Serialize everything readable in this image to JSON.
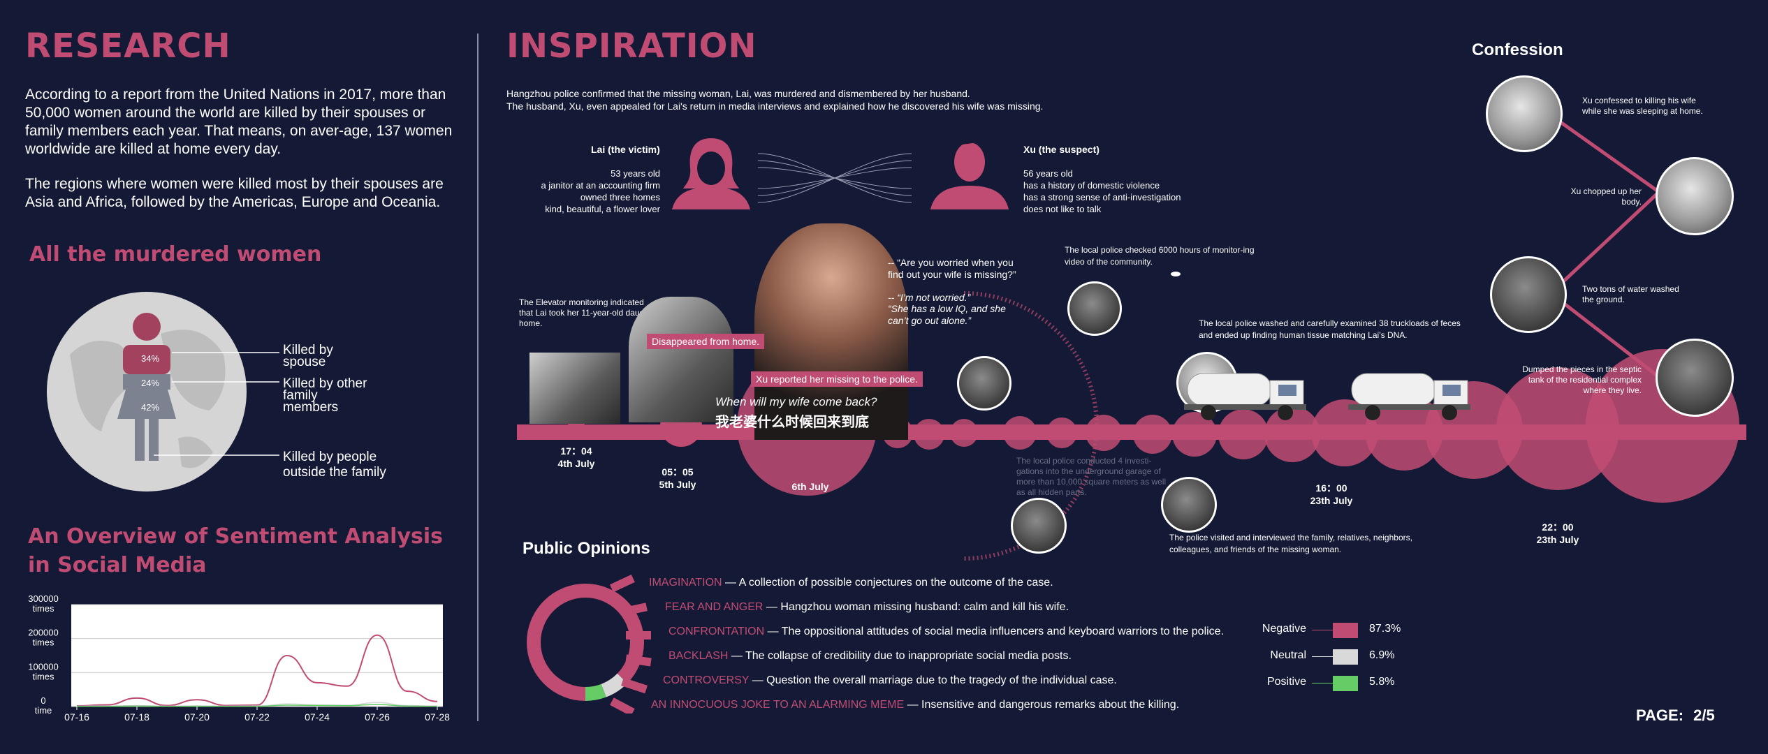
{
  "research": {
    "title": "RESEARCH",
    "para1": "According to a report from the United Nations in 2017, more than 50,000 women around the world are killed by their spouses or family members each year. That means, on aver-age, 137 women worldwide are killed at home every day.",
    "para2": "The regions where women were killed most by their spouses are Asia and Africa, followed by the Americas, Europe and Oceania.",
    "murdered_title": "All the murdered women",
    "pct_spouse": "34%",
    "pct_family": "24%",
    "pct_outside": "42%",
    "label_spouse": "Killed by spouse",
    "label_family": "Killed by other family members",
    "label_outside": "Killed by people outside the family",
    "sentiment_title_1": "An Overview of Sentiment Analysis",
    "sentiment_title_2": "in Social Media"
  },
  "chart_data": {
    "type": "line",
    "x": [
      "07-16",
      "07-17",
      "07-18",
      "07-19",
      "07-20",
      "07-21",
      "07-22",
      "07-23",
      "07-24",
      "07-25",
      "07-26",
      "07-27",
      "07-28"
    ],
    "x_ticks": [
      "07-16",
      "07-18",
      "07-20",
      "07-22",
      "07-24",
      "07-26",
      "07-28"
    ],
    "y_ticks": [
      {
        "value": 300000,
        "line1": "300000",
        "line2": "times"
      },
      {
        "value": 200000,
        "line1": "200000",
        "line2": "times"
      },
      {
        "value": 100000,
        "line1": "100000",
        "line2": "times"
      },
      {
        "value": 0,
        "line1": "0",
        "line2": "time"
      }
    ],
    "ylim": [
      0,
      300000
    ],
    "series": [
      {
        "color": "#c14c73",
        "values": [
          2000,
          5000,
          25000,
          3000,
          20000,
          3000,
          4000,
          150000,
          70000,
          60000,
          210000,
          45000,
          15000
        ]
      },
      {
        "color": "#d9d9d9",
        "values": [
          1000,
          1500,
          3000,
          1000,
          2000,
          1000,
          1500,
          8000,
          5000,
          4000,
          12000,
          3000,
          1500
        ]
      },
      {
        "color": "#66cc66",
        "values": [
          500,
          800,
          1500,
          600,
          1000,
          500,
          800,
          4000,
          3000,
          2500,
          6000,
          1500,
          800
        ]
      }
    ]
  },
  "inspiration": {
    "title": "INSPIRATION",
    "intro_1": "Hangzhou police confirmed that the missing woman, Lai, was murdered and dismembered by her husband.",
    "intro_2": "The husband, Xu, even appealed for Lai's return in media interviews and explained how he discovered his wife was missing.",
    "victim_name": "Lai (the victim)",
    "victim_lines": [
      "53 years old",
      "a janitor at an accounting firm",
      "owned three homes",
      "kind, beautiful, a flower lover"
    ],
    "suspect_name": "Xu (the suspect)",
    "suspect_lines": [
      "56 years old",
      "has a history of domestic violence",
      "has a strong sense of anti-investigation",
      "does not like to talk"
    ],
    "elevator_text": "The Elevator monitoring indicated that Lai took her 11-year-old daughter home.",
    "tag_disappeared": "Disappeared from home.",
    "tag_reported": "Xu reported her missing to the police.",
    "caption_en": "When will my wife come back?",
    "caption_cn": "我老婆什么时候回来到底",
    "quote_q": "-- “Are you worried when you find out your wife is missing?”",
    "quote_a1": "-- “I’m not worried.”",
    "quote_a2": "“She has a low IQ, and she can’t go out alone.”",
    "police_hours": "The local police checked 6000 hours of monitor-ing video of the community.",
    "police_washed": "The local police washed and carefully examined 38 truckloads of feces and ended up finding human tissue matching Lai’s DNA.",
    "police_investigations": "The local police conducted 4 investi-gations into the underground garage of more than 10,000 square meters as well as all hidden parts.",
    "police_visited": "The police visited and interviewed the family, relatives, neighbors, colleagues, and friends of the missing woman.",
    "dates": [
      {
        "time": "17：04",
        "day": "4th July"
      },
      {
        "time": "05：05",
        "day": "5th July"
      },
      {
        "time": "",
        "day": "6th July"
      },
      {
        "time": "16：00",
        "day": "23th July"
      },
      {
        "time": "22：00",
        "day": "23th July"
      }
    ]
  },
  "confession": {
    "title": "Confession",
    "items": [
      "Xu confessed to killing his wife while she was sleeping at home.",
      "Xu chopped up her body.",
      "Two tons of water washed the ground.",
      "Dumped the pieces in the septic tank of the residential complex where they live."
    ]
  },
  "opinions": {
    "title": "Public Opinions",
    "rows": [
      {
        "key": "IMAGINATION",
        "text": " — A collection of possible conjectures on the outcome of the case."
      },
      {
        "key": "FEAR AND ANGER",
        "text": " — Hangzhou woman missing husband: calm and kill his wife."
      },
      {
        "key": "CONFRONTATION",
        "text": " — The oppositional attitudes of social media influencers and keyboard warriors to the police."
      },
      {
        "key": "BACKLASH",
        "text": " — The collapse of credibility due to inappropriate social media posts."
      },
      {
        "key": "CONTROVERSY",
        "text": "  — Question the overall marriage due to the tragedy of the individual case."
      },
      {
        "key": "AN INNOCUOUS JOKE TO AN ALARMING MEME",
        "text": " — Insensitive and dangerous remarks about the killing."
      }
    ],
    "legend": [
      {
        "label": "Negative",
        "value": "87.3%",
        "color": "#c14c73",
        "frac": 0.873
      },
      {
        "label": "Neutral",
        "value": "6.9%",
        "color": "#d9d9d9",
        "frac": 0.069
      },
      {
        "label": "Positive",
        "value": "5.8%",
        "color": "#66cc66",
        "frac": 0.058
      }
    ]
  },
  "page": {
    "label": "PAGE:",
    "number": "2/5"
  }
}
